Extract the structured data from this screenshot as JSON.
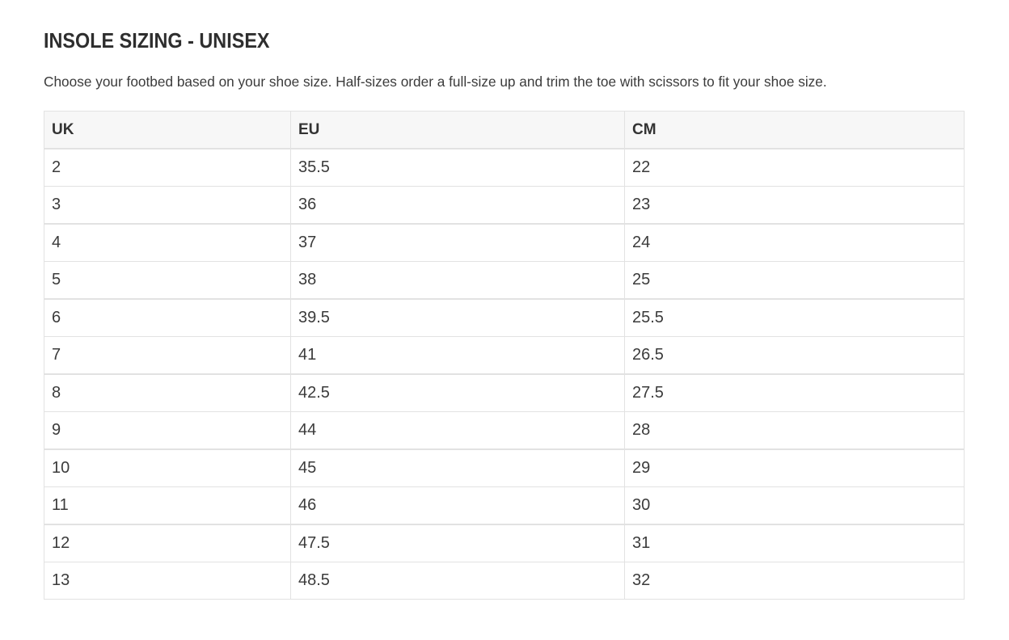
{
  "page": {
    "title": "INSOLE SIZING - UNISEX",
    "description": "Choose your footbed based on your shoe size. Half-sizes order a full-size up and trim the toe with scissors to fit your shoe size."
  },
  "chart_data": {
    "type": "table",
    "title": "INSOLE SIZING - UNISEX",
    "columns": [
      "UK",
      "EU",
      "CM"
    ],
    "rows": [
      [
        "2",
        "35.5",
        "22"
      ],
      [
        "3",
        "36",
        "23"
      ],
      [
        "4",
        "37",
        "24"
      ],
      [
        "5",
        "38",
        "25"
      ],
      [
        "6",
        "39.5",
        "25.5"
      ],
      [
        "7",
        "41",
        "26.5"
      ],
      [
        "8",
        "42.5",
        "27.5"
      ],
      [
        "9",
        "44",
        "28"
      ],
      [
        "10",
        "45",
        "29"
      ],
      [
        "11",
        "46",
        "30"
      ],
      [
        "12",
        "47.5",
        "31"
      ],
      [
        "13",
        "48.5",
        "32"
      ]
    ]
  },
  "colors": {
    "header_background": "#f7f7f7",
    "border": "#e2e2e2",
    "text": "#3b3b3b",
    "title_text": "#2e2e2e"
  }
}
